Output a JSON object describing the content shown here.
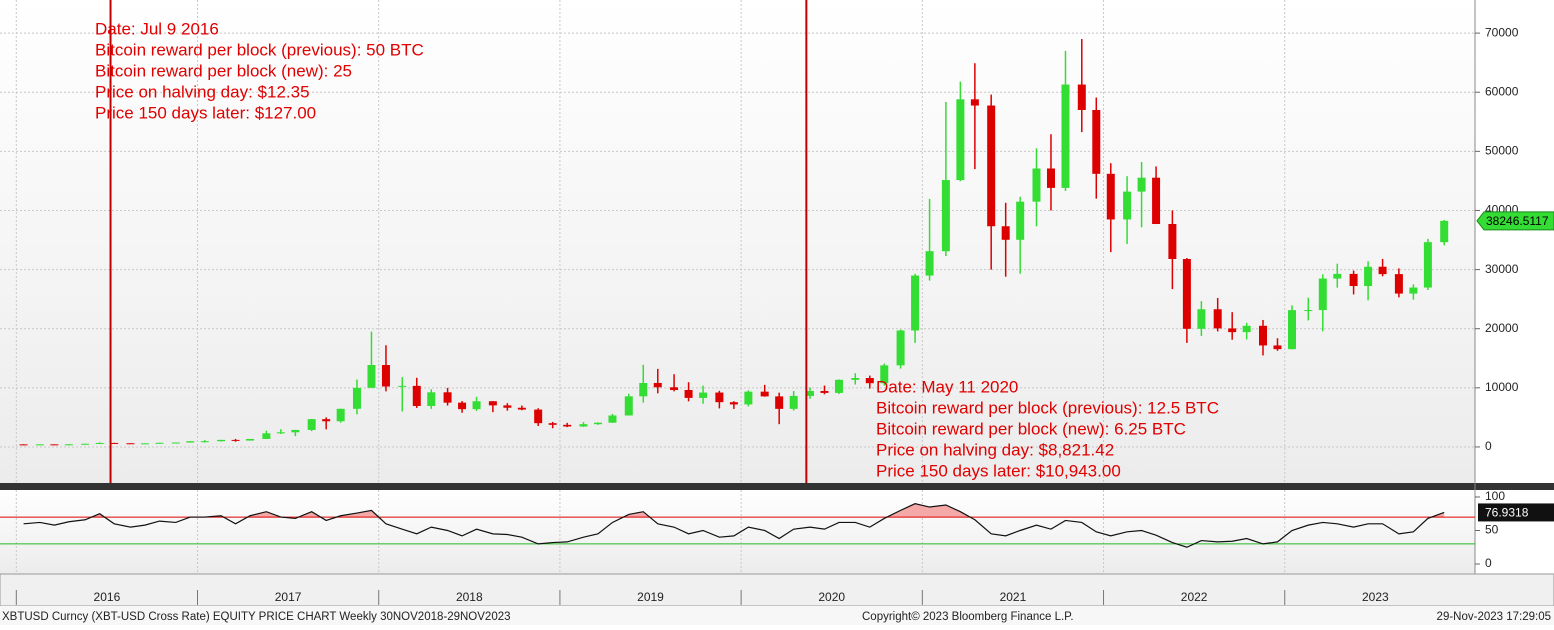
{
  "chart_data": {
    "type": "candlestick",
    "up_color": "#33dd33",
    "down_color": "#dd0000",
    "xlim": [
      2015.91,
      2024.05
    ],
    "xticks": [
      {
        "value": 2016,
        "label": "2016"
      },
      {
        "value": 2017,
        "label": "2017"
      },
      {
        "value": 2018,
        "label": "2018"
      },
      {
        "value": 2019,
        "label": "2019"
      },
      {
        "value": 2020,
        "label": "2020"
      },
      {
        "value": 2021,
        "label": "2021"
      },
      {
        "value": 2022,
        "label": "2022"
      },
      {
        "value": 2023,
        "label": "2023"
      }
    ],
    "ylim": [
      -6100,
      75600
    ],
    "yticks": [
      0,
      10000,
      20000,
      30000,
      40000,
      50000,
      60000,
      70000
    ],
    "grid": true,
    "x": [
      2016.04,
      2016.13,
      2016.21,
      2016.29,
      2016.38,
      2016.46,
      2016.54,
      2016.63,
      2016.71,
      2016.79,
      2016.88,
      2016.96,
      2017.04,
      2017.13,
      2017.21,
      2017.29,
      2017.38,
      2017.46,
      2017.54,
      2017.63,
      2017.71,
      2017.79,
      2017.88,
      2017.96,
      2018.04,
      2018.13,
      2018.21,
      2018.29,
      2018.38,
      2018.46,
      2018.54,
      2018.63,
      2018.71,
      2018.79,
      2018.88,
      2018.96,
      2019.04,
      2019.13,
      2019.21,
      2019.29,
      2019.38,
      2019.46,
      2019.54,
      2019.63,
      2019.71,
      2019.79,
      2019.88,
      2019.96,
      2020.04,
      2020.13,
      2020.21,
      2020.29,
      2020.38,
      2020.46,
      2020.54,
      2020.63,
      2020.71,
      2020.79,
      2020.88,
      2020.96,
      2021.04,
      2021.13,
      2021.21,
      2021.29,
      2021.38,
      2021.46,
      2021.54,
      2021.63,
      2021.71,
      2021.79,
      2021.88,
      2021.96,
      2022.04,
      2022.13,
      2022.21,
      2022.29,
      2022.38,
      2022.46,
      2022.54,
      2022.63,
      2022.71,
      2022.79,
      2022.88,
      2022.96,
      2023.04,
      2023.13,
      2023.21,
      2023.29,
      2023.38,
      2023.46,
      2023.54,
      2023.63,
      2023.71,
      2023.79,
      2023.88
    ],
    "open": [
      430,
      370,
      437,
      416,
      448,
      531,
      673,
      624,
      575,
      609,
      700,
      745,
      964,
      970,
      1190,
      1080,
      1350,
      2300,
      2480,
      2875,
      4700,
      4340,
      6450,
      10000,
      13860,
      10220,
      10330,
      6930,
      9240,
      7490,
      6390,
      7730,
      7030,
      6630,
      6320,
      4020,
      3740,
      3460,
      3850,
      4100,
      5320,
      8560,
      10820,
      10090,
      9630,
      8290,
      9200,
      7570,
      7190,
      9350,
      8550,
      6440,
      8630,
      9460,
      9140,
      11350,
      11660,
      10780,
      13800,
      19700,
      28990,
      33110,
      45140,
      58800,
      57750,
      37330,
      35040,
      41490,
      47100,
      43820,
      61300,
      57000,
      46200,
      38480,
      43190,
      45540,
      37710,
      31790,
      19980,
      23290,
      20050,
      19420,
      20490,
      17170,
      16540,
      23140,
      23150,
      28480,
      29270,
      27220,
      30480,
      29230,
      25940,
      26960,
      34640
    ],
    "high": [
      460,
      440,
      440,
      470,
      550,
      780,
      700,
      625,
      615,
      720,
      755,
      975,
      1150,
      1210,
      1350,
      1350,
      2750,
      3000,
      2900,
      4750,
      5000,
      6470,
      11400,
      19500,
      17200,
      11800,
      11700,
      9750,
      9990,
      7760,
      8480,
      7760,
      7400,
      7000,
      6540,
      4230,
      4070,
      4200,
      4150,
      5600,
      9000,
      13900,
      13200,
      12300,
      10950,
      10370,
      9500,
      7740,
      9580,
      10500,
      9180,
      9460,
      10060,
      10380,
      11430,
      12470,
      12070,
      14100,
      19860,
      29300,
      41950,
      58350,
      61800,
      64900,
      59600,
      41300,
      42300,
      50500,
      52900,
      67000,
      69000,
      59100,
      47990,
      45800,
      48200,
      47450,
      40000,
      31950,
      24670,
      25200,
      22800,
      21000,
      21480,
      18380,
      23950,
      25250,
      29200,
      31000,
      29830,
      31400,
      31800,
      30200,
      27500,
      35200,
      38400
    ],
    "low": [
      360,
      365,
      410,
      415,
      440,
      530,
      600,
      540,
      575,
      605,
      690,
      740,
      750,
      920,
      890,
      1060,
      1350,
      2200,
      1830,
      2670,
      2970,
      4110,
      5510,
      10000,
      9400,
      6000,
      6600,
      6430,
      7000,
      5780,
      6070,
      5880,
      6140,
      6210,
      3550,
      3160,
      3350,
      3390,
      3730,
      4080,
      5320,
      7500,
      9070,
      9400,
      7710,
      7300,
      6520,
      6430,
      6860,
      8500,
      3850,
      6150,
      8130,
      8900,
      8950,
      10550,
      9880,
      10380,
      13250,
      17600,
      28130,
      32300,
      44950,
      47000,
      30000,
      28800,
      29300,
      37330,
      40000,
      43300,
      53250,
      42000,
      32950,
      34320,
      37150,
      37700,
      26700,
      17600,
      18780,
      19540,
      18130,
      18190,
      15480,
      16260,
      16500,
      21400,
      19550,
      26950,
      25800,
      24800,
      28860,
      25300,
      24900,
      26550,
      34100
    ],
    "close": [
      370,
      437,
      416,
      448,
      531,
      673,
      624,
      575,
      609,
      700,
      745,
      964,
      970,
      1190,
      1080,
      1350,
      2300,
      2480,
      2875,
      4700,
      4340,
      6450,
      10000,
      13860,
      10220,
      10330,
      6930,
      9240,
      7490,
      6390,
      7730,
      7030,
      6630,
      6320,
      4020,
      3740,
      3460,
      3850,
      4100,
      5320,
      8560,
      10820,
      10090,
      9630,
      8290,
      9200,
      7570,
      7190,
      9350,
      8550,
      6440,
      8630,
      9460,
      9140,
      11350,
      11660,
      10780,
      13800,
      19700,
      28990,
      33110,
      45140,
      58800,
      57750,
      37330,
      35040,
      41490,
      47100,
      43820,
      61300,
      57000,
      46200,
      38480,
      43190,
      45540,
      37710,
      31790,
      19980,
      23290,
      20050,
      19420,
      20490,
      17170,
      16540,
      23140,
      23150,
      28480,
      29270,
      27220,
      30480,
      29230,
      25940,
      26960,
      34640,
      38246.5117
    ],
    "annotations": [
      {
        "x": 2016.52,
        "lines": [
          "Date: Jul 9 2016",
          "Bitcoin reward per block (previous): 50 BTC",
          "Bitcoin reward per block (new): 25",
          "Price on halving day: $12.35",
          "Price 150 days later: $127.00"
        ]
      },
      {
        "x": 2020.36,
        "lines": [
          "Date: May 11 2020",
          "Bitcoin reward per block (previous): 12.5 BTC",
          "Bitcoin reward per block (new): 6.25 BTC",
          "Price on halving day: $8,821.42",
          "Price 150 days later: $10,943.00"
        ]
      }
    ],
    "annotation_color": "#e00000",
    "rsi": {
      "values": [
        60,
        62,
        58,
        63,
        66,
        75,
        60,
        55,
        58,
        64,
        62,
        70,
        70,
        72,
        60,
        72,
        78,
        70,
        68,
        78,
        65,
        72,
        76,
        80,
        60,
        52,
        45,
        55,
        50,
        42,
        52,
        45,
        44,
        40,
        30,
        32,
        33,
        40,
        45,
        62,
        74,
        78,
        60,
        55,
        45,
        50,
        40,
        42,
        55,
        50,
        38,
        52,
        55,
        52,
        62,
        62,
        55,
        68,
        80,
        90,
        85,
        88,
        78,
        66,
        45,
        42,
        50,
        58,
        52,
        65,
        62,
        48,
        42,
        48,
        50,
        43,
        32,
        25,
        35,
        33,
        34,
        38,
        30,
        33,
        50,
        58,
        62,
        60,
        55,
        60,
        60,
        45,
        48,
        68,
        76.9318
      ],
      "ylim": [
        -13.4,
        110.4
      ],
      "yticks": [
        0,
        50,
        100
      ],
      "upper": 70,
      "lower": 30
    },
    "footer": {
      "left": "XBTUSD Curncy (XBT-USD Cross Rate) EQUITY PRICE CHART  Weekly 30NOV2018-29NOV2023",
      "center": "Copyright© 2023 Bloomberg Finance L.P.",
      "right": "29-Nov-2023 17:29:05"
    }
  }
}
